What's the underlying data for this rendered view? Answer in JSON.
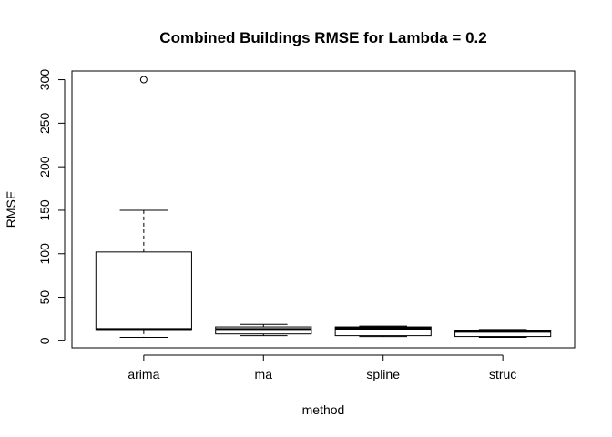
{
  "chart_data": {
    "type": "boxplot",
    "title": "Combined Buildings RMSE for Lambda =  0.2",
    "xlabel": "method",
    "ylabel": "RMSE",
    "categories": [
      "arima",
      "ma",
      "spline",
      "struc"
    ],
    "yticks": [
      "0",
      "50",
      "100",
      "150",
      "200",
      "250",
      "300"
    ],
    "ylim": [
      -8,
      310
    ],
    "grid": false,
    "legend": "none",
    "boxes": [
      {
        "name": "arima",
        "min": 4,
        "q1": 12,
        "median": 13,
        "q3": 102,
        "max": 150,
        "outliers": [
          300
        ]
      },
      {
        "name": "ma",
        "min": 6,
        "q1": 8,
        "median": 13,
        "q3": 16,
        "max": 19,
        "outliers": []
      },
      {
        "name": "spline",
        "min": 5,
        "q1": 6,
        "median": 14,
        "q3": 16,
        "max": 17,
        "outliers": []
      },
      {
        "name": "struc",
        "min": 4,
        "q1": 5,
        "median": 11,
        "q3": 12,
        "max": 13,
        "outliers": []
      }
    ]
  }
}
